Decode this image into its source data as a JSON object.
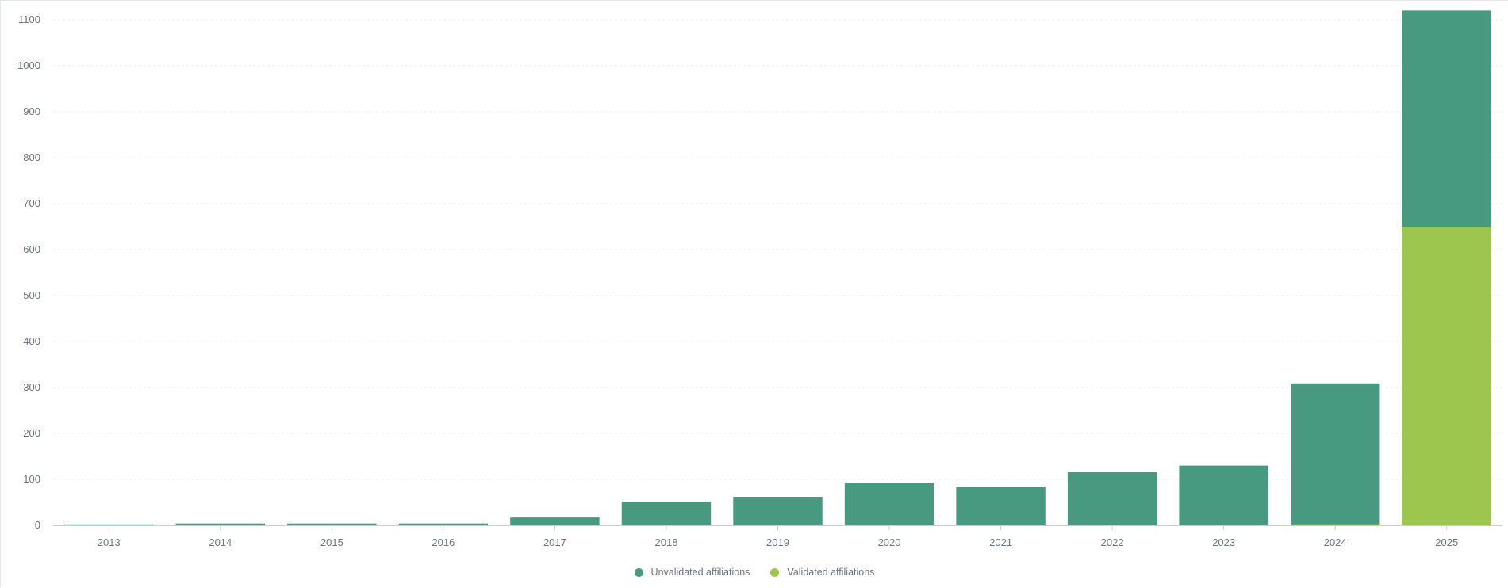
{
  "chart_data": {
    "type": "bar",
    "stacked": true,
    "title": "",
    "xlabel": "",
    "ylabel": "",
    "categories": [
      "2013",
      "2014",
      "2015",
      "2016",
      "2017",
      "2018",
      "2019",
      "2020",
      "2021",
      "2022",
      "2023",
      "2024",
      "2025"
    ],
    "series": [
      {
        "name": "Validated affiliations",
        "color": "#9dc64e",
        "values": [
          0,
          0,
          0,
          0,
          0,
          0,
          0,
          0,
          0,
          0,
          0,
          2,
          650
        ]
      },
      {
        "name": "Unvalidated affiliations",
        "color": "#479a7f",
        "values": [
          2,
          4,
          4,
          4,
          17,
          50,
          62,
          93,
          84,
          116,
          130,
          307,
          470
        ]
      }
    ],
    "ylim": [
      0,
      1110
    ],
    "yticks": [
      "0",
      "100",
      "200",
      "300",
      "400",
      "500",
      "600",
      "700",
      "800",
      "900",
      "1000",
      "1100"
    ],
    "grid": true,
    "legend_position": "bottom-center"
  },
  "legend": {
    "items": [
      {
        "label": "Unvalidated affiliations",
        "color": "#479a7f"
      },
      {
        "label": "Validated affiliations",
        "color": "#9dc64e"
      }
    ]
  }
}
